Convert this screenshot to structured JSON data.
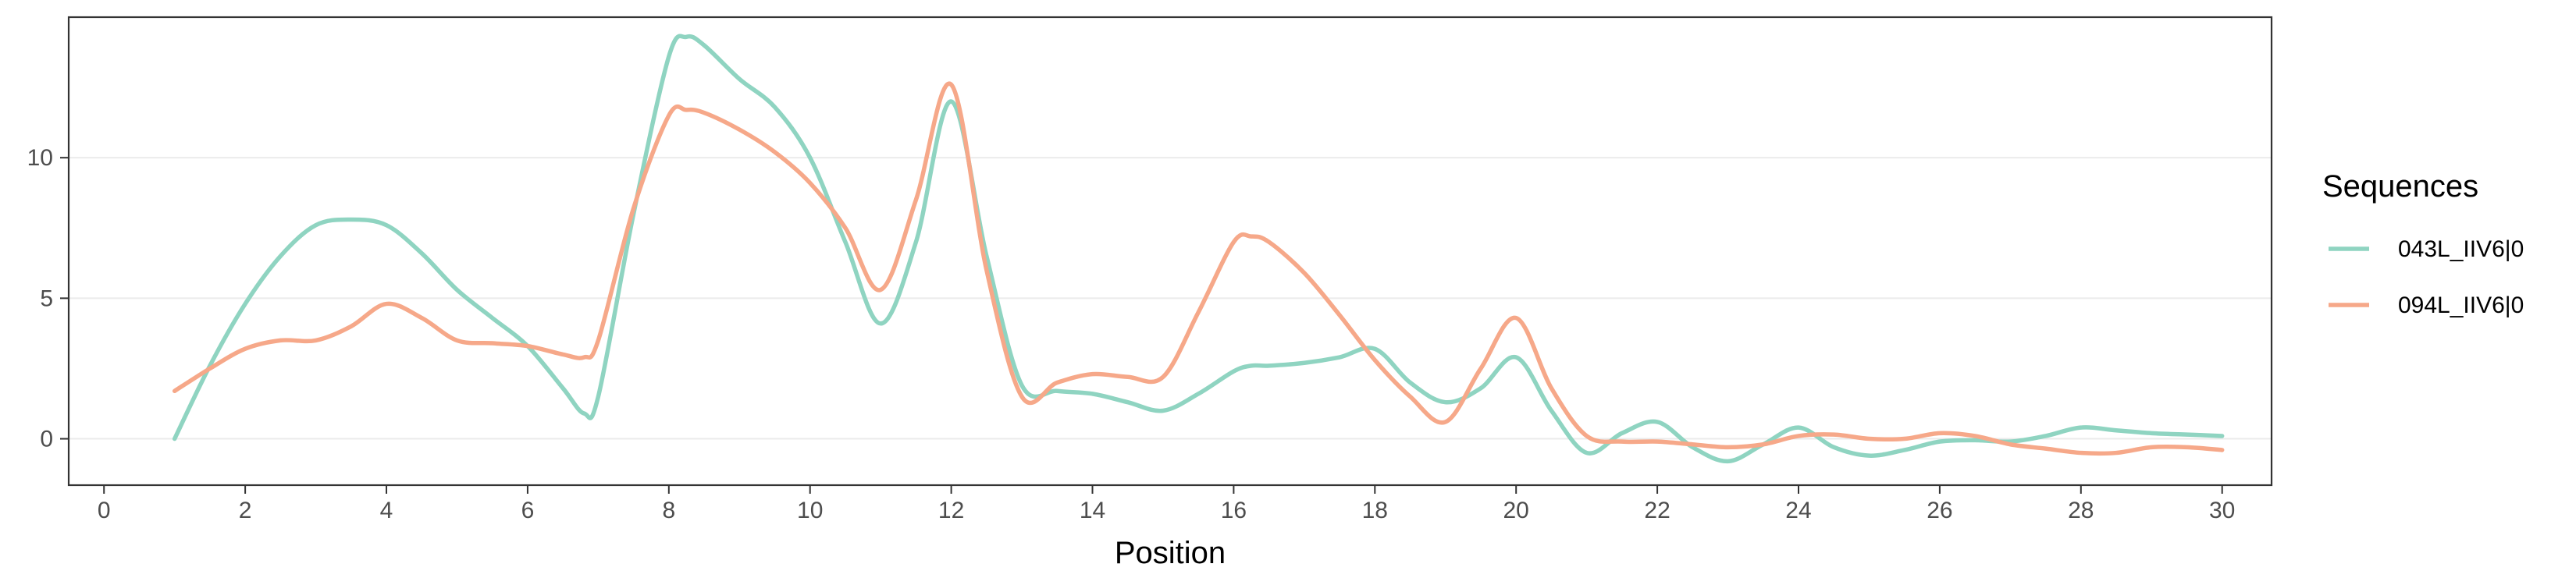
{
  "chart_data": {
    "type": "line",
    "title": "",
    "xlabel": "Position",
    "ylabel": "",
    "xlim": [
      -0.5,
      30.7
    ],
    "ylim": [
      -1.65,
      15
    ],
    "x_ticks": [
      0,
      2,
      4,
      6,
      8,
      10,
      12,
      14,
      16,
      18,
      20,
      22,
      24,
      26,
      28,
      30
    ],
    "y_ticks": [
      0,
      5,
      10
    ],
    "grid": true,
    "legend": {
      "title": "Sequences",
      "position": "right"
    },
    "x": [
      1,
      1.5,
      2,
      2.5,
      3,
      3.5,
      4,
      4.5,
      5,
      5.5,
      6,
      6.5,
      6.8,
      7,
      7.5,
      8,
      8.25,
      8.5,
      9,
      9.5,
      10,
      10.5,
      11,
      11.5,
      12,
      12.5,
      13,
      13.5,
      14,
      14.5,
      15,
      15.5,
      16,
      16.25,
      16.5,
      17,
      17.5,
      18,
      18.5,
      19,
      19.5,
      20,
      20.5,
      21,
      21.5,
      22,
      22.5,
      23,
      23.5,
      24,
      24.5,
      25,
      25.5,
      26,
      26.5,
      27,
      27.5,
      28,
      28.5,
      29,
      29.5,
      30
    ],
    "series": [
      {
        "name": "043L_IIV6|0",
        "color": "#8fd4c1",
        "values": [
          0.0,
          2.6,
          4.8,
          6.5,
          7.6,
          7.8,
          7.6,
          6.6,
          5.3,
          4.3,
          3.3,
          1.8,
          0.9,
          1.5,
          8.0,
          13.6,
          14.3,
          14.0,
          12.8,
          11.8,
          10.0,
          7.0,
          4.1,
          7.0,
          12.0,
          6.5,
          1.9,
          1.7,
          1.6,
          1.3,
          1.0,
          1.6,
          2.4,
          2.6,
          2.6,
          2.7,
          2.9,
          3.2,
          2.0,
          1.3,
          1.8,
          2.9,
          1.0,
          -0.5,
          0.2,
          0.6,
          -0.3,
          -0.8,
          -0.2,
          0.4,
          -0.3,
          -0.6,
          -0.4,
          -0.1,
          -0.05,
          -0.1,
          0.1,
          0.4,
          0.3,
          0.2,
          0.15,
          0.1
        ]
      },
      {
        "name": "094L_IIV6|0",
        "color": "#f6a889",
        "values": [
          1.7,
          2.5,
          3.2,
          3.5,
          3.5,
          4.0,
          4.8,
          4.3,
          3.5,
          3.4,
          3.3,
          3.0,
          2.9,
          3.5,
          8.2,
          11.5,
          11.7,
          11.6,
          11.0,
          10.2,
          9.1,
          7.5,
          5.3,
          8.5,
          12.6,
          6.0,
          1.5,
          2.0,
          2.3,
          2.2,
          2.2,
          4.5,
          7.0,
          7.2,
          7.0,
          5.9,
          4.4,
          2.8,
          1.5,
          0.6,
          2.5,
          4.3,
          1.8,
          0.1,
          -0.1,
          -0.1,
          -0.2,
          -0.3,
          -0.2,
          0.1,
          0.15,
          0.0,
          0.0,
          0.2,
          0.1,
          -0.2,
          -0.35,
          -0.5,
          -0.5,
          -0.3,
          -0.3,
          -0.4
        ]
      }
    ]
  }
}
